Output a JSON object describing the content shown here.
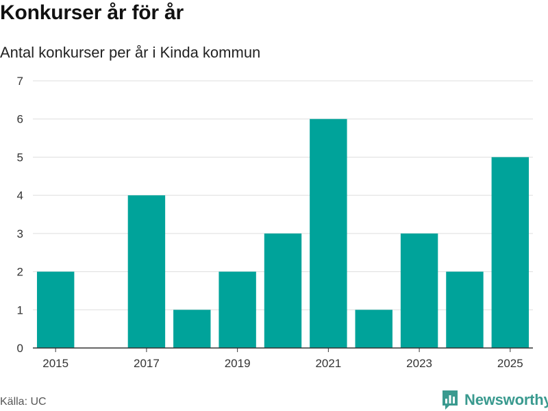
{
  "header": {
    "title": "Konkurser år för år",
    "subtitle": "Antal konkurser per år i Kinda kommun"
  },
  "footer": {
    "source": "Källa: UC",
    "brand": "Newsworthy"
  },
  "colors": {
    "bar": "#00a39a",
    "grid": "#dddddd",
    "axis": "#333333",
    "brand": "#3a9a8f"
  },
  "chart_data": {
    "type": "bar",
    "title": "Konkurser år för år",
    "subtitle": "Antal konkurser per år i Kinda kommun",
    "xlabel": "",
    "ylabel": "",
    "categories": [
      2015,
      2016,
      2017,
      2018,
      2019,
      2020,
      2021,
      2022,
      2023,
      2024,
      2025
    ],
    "values": [
      2,
      0,
      4,
      1,
      2,
      3,
      6,
      1,
      3,
      2,
      5
    ],
    "ylim": [
      0,
      7
    ],
    "yticks": [
      "0",
      "1",
      "2",
      "3",
      "4",
      "5",
      "6",
      "7"
    ],
    "xticks": [
      "2015",
      "2017",
      "2019",
      "2021",
      "2023",
      "2025"
    ],
    "grid": true,
    "legend": "none"
  }
}
